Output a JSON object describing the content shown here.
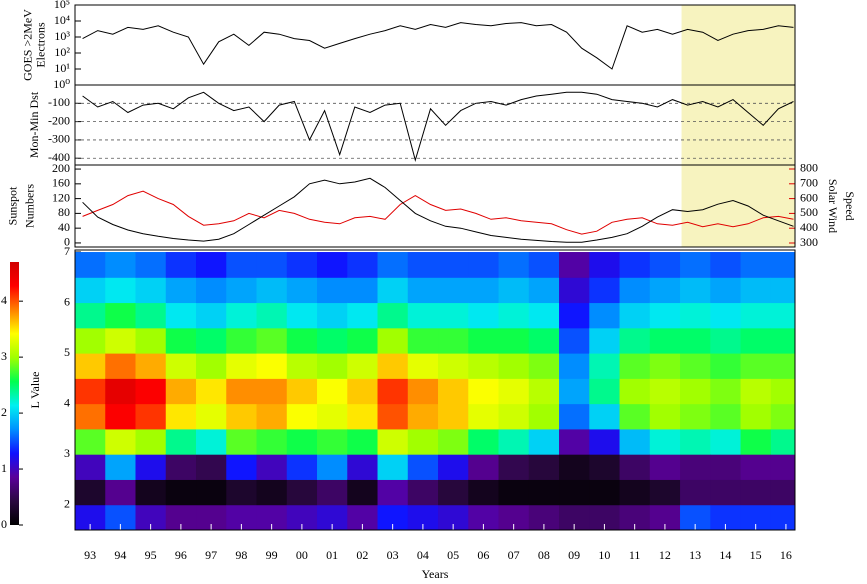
{
  "chart_data": [
    {
      "type": "line",
      "ylabel": [
        "GOES >2MeV",
        "Electrons"
      ],
      "log_scale": true,
      "xlim": [
        1992.5,
        2016.3
      ],
      "ylim": [
        1,
        100000
      ],
      "yticks": [
        {
          "value": 1,
          "label": "10⁰"
        },
        {
          "value": 10,
          "label": "10¹"
        },
        {
          "value": 100,
          "label": "10²"
        },
        {
          "value": 1000,
          "label": "10³"
        },
        {
          "value": 10000,
          "label": "10⁴"
        },
        {
          "value": 100000,
          "label": "10⁵"
        }
      ],
      "highlight": [
        2012.55,
        2016.3
      ],
      "highlight_color": "#f7f3bf",
      "x": [
        1992.75,
        1993.25,
        1993.75,
        1994.25,
        1994.75,
        1995.25,
        1995.75,
        1996.25,
        1996.75,
        1997.25,
        1997.75,
        1998.25,
        1998.75,
        1999.25,
        1999.75,
        2000.25,
        2000.75,
        2001.25,
        2001.75,
        2002.25,
        2002.75,
        2003.25,
        2003.75,
        2004.25,
        2004.75,
        2005.25,
        2005.75,
        2006.25,
        2006.75,
        2007.25,
        2007.75,
        2008.25,
        2008.75,
        2009.25,
        2009.75,
        2010.25,
        2010.75,
        2011.25,
        2011.75,
        2012.25,
        2012.75,
        2013.25,
        2013.75,
        2014.25,
        2014.75,
        2015.25,
        2015.75,
        2016.25
      ],
      "series": [
        {
          "color": "#000000",
          "values": [
            800,
            2500,
            1500,
            4000,
            3000,
            5000,
            2000,
            1000,
            20,
            500,
            1500,
            300,
            2000,
            1500,
            800,
            600,
            200,
            400,
            800,
            1500,
            2500,
            5000,
            3000,
            6000,
            4000,
            8000,
            6000,
            5000,
            7000,
            8000,
            5000,
            6000,
            2000,
            200,
            50,
            10,
            5000,
            2000,
            3000,
            1500,
            3000,
            2000,
            600,
            1500,
            2500,
            3000,
            5000,
            4000
          ]
        }
      ]
    },
    {
      "type": "line",
      "ylabel": [
        "Mon-Min Dst"
      ],
      "grid": true,
      "xlim": [
        1992.5,
        2016.3
      ],
      "ylim": [
        -437,
        0
      ],
      "yticks": [
        -100,
        -200,
        -300,
        -400
      ],
      "x": [
        1992.75,
        1993.25,
        1993.75,
        1994.25,
        1994.75,
        1995.25,
        1995.75,
        1996.25,
        1996.75,
        1997.25,
        1997.75,
        1998.25,
        1998.75,
        1999.25,
        1999.75,
        2000.25,
        2000.75,
        2001.25,
        2001.75,
        2002.25,
        2002.75,
        2003.25,
        2003.75,
        2004.25,
        2004.75,
        2005.25,
        2005.75,
        2006.25,
        2006.75,
        2007.25,
        2007.75,
        2008.25,
        2008.75,
        2009.25,
        2009.75,
        2010.25,
        2010.75,
        2011.25,
        2011.75,
        2012.25,
        2012.75,
        2013.25,
        2013.75,
        2014.25,
        2014.75,
        2015.25,
        2015.75,
        2016.25
      ],
      "series": [
        {
          "color": "#000000",
          "values": [
            -60,
            -120,
            -90,
            -150,
            -110,
            -100,
            -130,
            -70,
            -40,
            -100,
            -140,
            -120,
            -200,
            -110,
            -90,
            -300,
            -140,
            -380,
            -120,
            -150,
            -110,
            -100,
            -410,
            -130,
            -220,
            -140,
            -100,
            -90,
            -110,
            -80,
            -60,
            -50,
            -40,
            -40,
            -50,
            -80,
            -90,
            -100,
            -120,
            -80,
            -110,
            -90,
            -120,
            -80,
            -150,
            -220,
            -130,
            -90
          ]
        }
      ]
    },
    {
      "type": "line",
      "ylabel": [
        "Sunspot",
        "Numbers"
      ],
      "y2label": [
        "Solar Wind",
        "Speed"
      ],
      "y2color": "#e00000",
      "xlim": [
        1992.5,
        2016.3
      ],
      "ylim": [
        -11,
        211
      ],
      "yticks": [
        0,
        40,
        80,
        120,
        160,
        200
      ],
      "y2lim": [
        273,
        827
      ],
      "y2ticks": [
        300,
        400,
        500,
        600,
        700,
        800
      ],
      "x": [
        1992.75,
        1993.25,
        1993.75,
        1994.25,
        1994.75,
        1995.25,
        1995.75,
        1996.25,
        1996.75,
        1997.25,
        1997.75,
        1998.25,
        1998.75,
        1999.25,
        1999.75,
        2000.25,
        2000.75,
        2001.25,
        2001.75,
        2002.25,
        2002.75,
        2003.25,
        2003.75,
        2004.25,
        2004.75,
        2005.25,
        2005.75,
        2006.25,
        2006.75,
        2007.25,
        2007.75,
        2008.25,
        2008.75,
        2009.25,
        2009.75,
        2010.25,
        2010.75,
        2011.25,
        2011.75,
        2012.25,
        2012.75,
        2013.25,
        2013.75,
        2014.25,
        2014.75,
        2015.25,
        2015.75,
        2016.25
      ],
      "series": [
        {
          "color": "#e00000",
          "axis": "y2",
          "values": [
            480,
            520,
            560,
            620,
            650,
            600,
            560,
            480,
            420,
            430,
            450,
            500,
            470,
            520,
            500,
            460,
            440,
            430,
            470,
            480,
            460,
            560,
            620,
            560,
            520,
            530,
            500,
            460,
            470,
            450,
            440,
            430,
            390,
            360,
            380,
            440,
            460,
            470,
            430,
            420,
            440,
            410,
            430,
            410,
            430,
            470,
            480,
            460
          ]
        },
        {
          "color": "#000000",
          "values": [
            110,
            70,
            50,
            35,
            25,
            18,
            12,
            8,
            5,
            10,
            25,
            50,
            75,
            100,
            125,
            160,
            170,
            160,
            165,
            175,
            150,
            115,
            80,
            60,
            45,
            40,
            30,
            20,
            15,
            10,
            7,
            4,
            2,
            2,
            8,
            15,
            25,
            45,
            70,
            90,
            85,
            90,
            105,
            115,
            100,
            75,
            60,
            45
          ]
        }
      ]
    },
    {
      "type": "heatmap",
      "ylabel": [
        "L Value"
      ],
      "xlabel": "Years",
      "xlim": [
        1992.5,
        2016.3
      ],
      "ylim": [
        1.5,
        7.04
      ],
      "yticks": [
        2,
        3,
        4,
        5,
        6,
        7
      ],
      "xticks": [
        {
          "value": 1993,
          "label": "93"
        },
        {
          "value": 1994,
          "label": "94"
        },
        {
          "value": 1995,
          "label": "95"
        },
        {
          "value": 1996,
          "label": "96"
        },
        {
          "value": 1997,
          "label": "97"
        },
        {
          "value": 1998,
          "label": "98"
        },
        {
          "value": 1999,
          "label": "99"
        },
        {
          "value": 2000,
          "label": "00"
        },
        {
          "value": 2001,
          "label": "01"
        },
        {
          "value": 2002,
          "label": "02"
        },
        {
          "value": 2003,
          "label": "03"
        },
        {
          "value": 2004,
          "label": "04"
        },
        {
          "value": 2005,
          "label": "05"
        },
        {
          "value": 2006,
          "label": "06"
        },
        {
          "value": 2007,
          "label": "07"
        },
        {
          "value": 2008,
          "label": "08"
        },
        {
          "value": 2009,
          "label": "09"
        },
        {
          "value": 2010,
          "label": "10"
        },
        {
          "value": 2011,
          "label": "11"
        },
        {
          "value": 2012,
          "label": "12"
        },
        {
          "value": 2013,
          "label": "13"
        },
        {
          "value": 2014,
          "label": "14"
        },
        {
          "value": 2015,
          "label": "15"
        },
        {
          "value": 2016,
          "label": "16"
        }
      ],
      "x_edges": [
        1992.5,
        1993.5,
        1994.5,
        1995.5,
        1996.5,
        1997.5,
        1998.5,
        1999.5,
        2000.5,
        2001.5,
        2002.5,
        2003.5,
        2004.5,
        2005.5,
        2006.5,
        2007.5,
        2008.5,
        2009.5,
        2010.5,
        2011.5,
        2012.5,
        2013.5,
        2014.5,
        2015.5,
        2016.3
      ],
      "l_edges": [
        1.5,
        2.0,
        2.5,
        3.0,
        3.5,
        4.0,
        4.5,
        5.0,
        5.5,
        6.0,
        6.5,
        7.0
      ],
      "colorbar": {
        "lim": [
          0,
          4.7
        ],
        "ticks": [
          0,
          1,
          2,
          3,
          4
        ]
      },
      "colors": [
        "#000000",
        "#2a0840",
        "#5a009a",
        "#1010ff",
        "#0090ff",
        "#00f0f0",
        "#00ff50",
        "#a0ff00",
        "#ffff00",
        "#ff8000",
        "#ff0000",
        "#d00000"
      ],
      "z": [
        [
          1.2,
          0.3,
          1.0,
          2.8,
          3.9,
          4.1,
          3.6,
          3.0,
          2.4,
          2.0,
          1.6
        ],
        [
          1.5,
          0.8,
          1.8,
          3.2,
          4.3,
          4.5,
          3.9,
          3.2,
          2.6,
          2.1,
          1.7
        ],
        [
          1.0,
          0.2,
          1.2,
          3.0,
          4.1,
          4.3,
          3.7,
          3.0,
          2.4,
          2.0,
          1.6
        ],
        [
          0.8,
          0.1,
          0.6,
          2.4,
          3.5,
          3.7,
          3.2,
          2.6,
          2.1,
          1.8,
          1.4
        ],
        [
          0.8,
          0.1,
          0.5,
          2.2,
          3.3,
          3.5,
          3.0,
          2.5,
          2.0,
          1.7,
          1.3
        ],
        [
          0.9,
          0.3,
          1.3,
          2.8,
          3.6,
          3.8,
          3.3,
          2.7,
          2.2,
          1.8,
          1.5
        ],
        [
          0.9,
          0.2,
          1.0,
          2.7,
          3.7,
          3.8,
          3.4,
          2.8,
          2.3,
          1.9,
          1.5
        ],
        [
          1.0,
          0.4,
          1.4,
          2.6,
          3.4,
          3.6,
          3.1,
          2.6,
          2.1,
          1.8,
          1.4
        ],
        [
          1.1,
          0.6,
          1.7,
          2.7,
          3.3,
          3.4,
          3.0,
          2.5,
          2.0,
          1.7,
          1.3
        ],
        [
          0.9,
          0.2,
          1.1,
          2.6,
          3.5,
          3.6,
          3.2,
          2.6,
          2.1,
          1.7,
          1.4
        ],
        [
          1.3,
          0.9,
          2.0,
          3.2,
          4.0,
          4.1,
          3.6,
          3.0,
          2.4,
          2.0,
          1.6
        ],
        [
          1.2,
          0.6,
          1.5,
          3.0,
          3.7,
          3.8,
          3.3,
          2.7,
          2.2,
          1.8,
          1.5
        ],
        [
          1.1,
          0.4,
          1.2,
          2.9,
          3.6,
          3.6,
          3.2,
          2.7,
          2.2,
          1.8,
          1.5
        ],
        [
          0.9,
          0.2,
          0.8,
          2.5,
          3.3,
          3.4,
          3.1,
          2.6,
          2.1,
          1.8,
          1.5
        ],
        [
          0.8,
          0.1,
          0.5,
          2.3,
          3.2,
          3.3,
          3.0,
          2.6,
          2.2,
          1.9,
          1.6
        ],
        [
          0.7,
          0.1,
          0.4,
          2.0,
          3.0,
          3.1,
          2.9,
          2.5,
          2.1,
          1.8,
          1.5
        ],
        [
          0.6,
          0.1,
          0.2,
          0.9,
          1.6,
          1.8,
          1.7,
          1.5,
          1.3,
          1.1,
          0.9
        ],
        [
          0.6,
          0.1,
          0.3,
          1.2,
          2.0,
          2.4,
          2.3,
          2.0,
          1.7,
          1.4,
          1.2
        ],
        [
          0.7,
          0.2,
          0.6,
          1.9,
          2.8,
          3.0,
          2.8,
          2.4,
          2.0,
          1.7,
          1.4
        ],
        [
          0.8,
          0.3,
          0.8,
          2.2,
          3.0,
          3.1,
          2.9,
          2.5,
          2.1,
          1.8,
          1.5
        ],
        [
          1.5,
          0.6,
          0.7,
          2.3,
          2.9,
          3.0,
          2.8,
          2.5,
          2.2,
          1.9,
          1.6
        ],
        [
          1.4,
          0.6,
          0.7,
          2.2,
          2.8,
          2.9,
          2.7,
          2.4,
          2.1,
          1.8,
          1.5
        ],
        [
          1.4,
          0.6,
          0.8,
          2.6,
          3.0,
          3.1,
          2.8,
          2.5,
          2.2,
          1.9,
          1.6
        ],
        [
          1.4,
          0.6,
          0.8,
          2.4,
          2.9,
          3.0,
          2.8,
          2.5,
          2.2,
          1.9,
          1.6
        ]
      ]
    }
  ]
}
